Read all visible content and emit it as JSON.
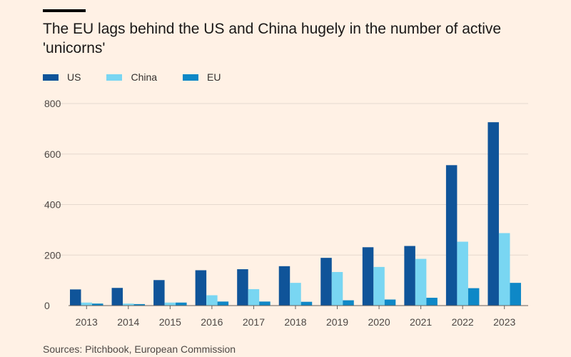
{
  "chart_data": {
    "type": "bar",
    "title": "The EU lags behind the US and China hugely in the number of active 'unicorns'",
    "xlabel": "",
    "ylabel": "",
    "ylim": [
      0,
      800
    ],
    "yticks": [
      0,
      200,
      400,
      600,
      800
    ],
    "grid": true,
    "legend_position": "top-left",
    "categories": [
      "2013",
      "2014",
      "2015",
      "2016",
      "2017",
      "2018",
      "2019",
      "2020",
      "2021",
      "2022",
      "2023"
    ],
    "series": [
      {
        "name": "US",
        "color": "#0f5499",
        "values": [
          64,
          70,
          101,
          140,
          144,
          156,
          189,
          231,
          236,
          556,
          726
        ]
      },
      {
        "name": "China",
        "color": "#79d6f2",
        "values": [
          12,
          8,
          12,
          41,
          65,
          90,
          133,
          153,
          185,
          253,
          287
        ]
      },
      {
        "name": "EU",
        "color": "#0e88c7",
        "values": [
          8,
          6,
          12,
          16,
          16,
          15,
          21,
          24,
          31,
          69,
          90
        ]
      }
    ],
    "source": "Sources: Pitchbook, European Commission"
  },
  "colors": {
    "background": "#fff1e5",
    "grid": "#e6d9ce",
    "axis": "#66605c"
  }
}
